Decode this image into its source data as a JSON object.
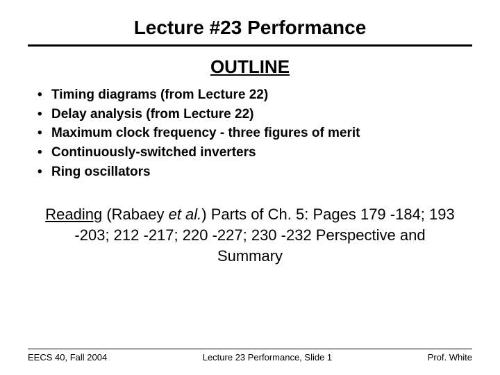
{
  "title": "Lecture #23 Performance",
  "outline_heading": "OUTLINE",
  "bullets": [
    "Timing diagrams (from Lecture 22)",
    "Delay analysis (from Lecture 22)",
    "Maximum clock frequency - three figures of merit",
    "Continuously-switched inverters",
    "Ring oscillators"
  ],
  "reading": {
    "label": "Reading",
    "citation_pre": " (Rabaey ",
    "citation_italic": "et al.",
    "citation_post": ") Parts of Ch. 5: Pages 179 -184; 193 -203; 212 -217; 220 -227; 230 -232 Perspective and Summary"
  },
  "footer": {
    "left": "EECS 40, Fall 2004",
    "center": "Lecture 23 Performance, Slide 1",
    "right": "Prof. White"
  },
  "colors": {
    "text": "#000000",
    "background": "#ffffff",
    "rule": "#000000"
  },
  "typography": {
    "title_pt": 28,
    "heading_pt": 26,
    "bullet_pt": 19,
    "reading_pt": 22,
    "footer_pt": 13,
    "family": "Arial"
  }
}
